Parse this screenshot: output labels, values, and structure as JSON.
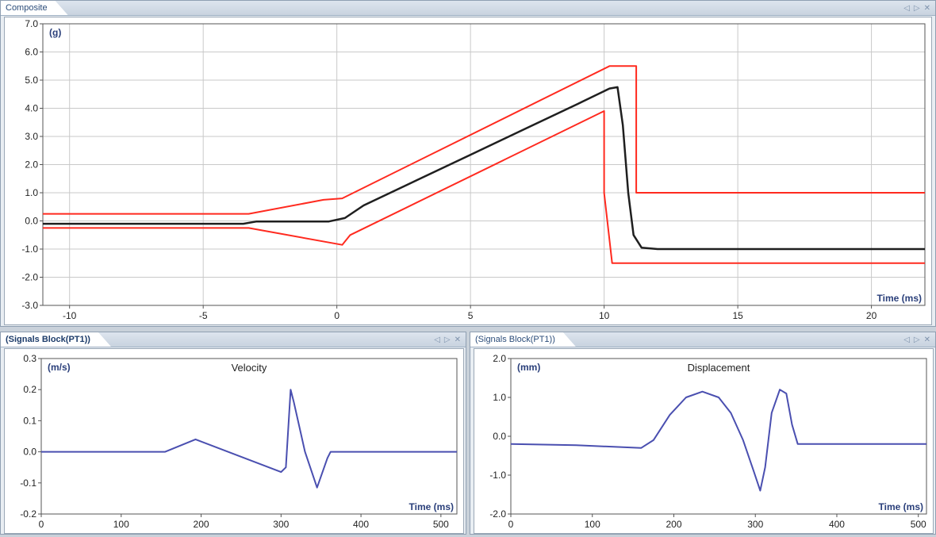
{
  "panels": {
    "composite": {
      "tab_label": "Composite"
    },
    "velocity": {
      "tab_label": "(Signals Block(PT1))"
    },
    "displacement": {
      "tab_label": "(Signals Block(PT1))"
    }
  },
  "controls": {
    "prev_icon": "◁",
    "next_icon": "▷",
    "close_icon": "✕"
  },
  "colors": {
    "envelope": "#ff2a1f",
    "signal": "#1f1f1f",
    "trace": "#4a4fb0",
    "grid": "#c9c9c9"
  },
  "chart_data": [
    {
      "id": "composite",
      "type": "line",
      "title": "",
      "xlabel": "Time (ms)",
      "ylabel": "(g)",
      "xlim": [
        -11,
        22
      ],
      "ylim": [
        -3,
        7
      ],
      "xticks": [
        -10,
        -5,
        0,
        5,
        10,
        15,
        20
      ],
      "yticks": [
        -3,
        -2,
        -1,
        0,
        1,
        2,
        3,
        4,
        5,
        6,
        7
      ],
      "xtick_labels": [
        "-10",
        "-5",
        "0",
        "5",
        "10",
        "15",
        "20"
      ],
      "ytick_labels": [
        "-3.0",
        "-2.0",
        "-1.0",
        "0.0",
        "1.0",
        "2.0",
        "3.0",
        "4.0",
        "5.0",
        "6.0",
        "7.0"
      ],
      "grid": true,
      "series": [
        {
          "color": "#ff2a1f",
          "width": 2,
          "x": [
            -11,
            -3.3,
            -0.5,
            0.2,
            10.2,
            11.2,
            11.2,
            22
          ],
          "y": [
            0.25,
            0.25,
            0.75,
            0.8,
            5.5,
            5.5,
            1.0,
            1.0
          ]
        },
        {
          "color": "#ff2a1f",
          "width": 2,
          "x": [
            -11,
            -3.3,
            0.2,
            0.5,
            10.0,
            10.0,
            10.3,
            10.3,
            22
          ],
          "y": [
            -0.25,
            -0.25,
            -0.85,
            -0.5,
            3.9,
            1.0,
            -1.5,
            -1.5,
            -1.5
          ]
        },
        {
          "color": "#1f1f1f",
          "width": 2.5,
          "x": [
            -11,
            -3.5,
            -3.0,
            -0.3,
            0.3,
            1,
            3,
            5,
            7,
            9,
            10.2,
            10.5,
            10.7,
            10.9,
            11.1,
            11.4,
            12,
            22
          ],
          "y": [
            -0.1,
            -0.1,
            -0.02,
            -0.02,
            0.1,
            0.55,
            1.45,
            2.35,
            3.25,
            4.15,
            4.7,
            4.75,
            3.4,
            1.0,
            -0.5,
            -0.95,
            -1.0,
            -1.0
          ]
        }
      ]
    },
    {
      "id": "velocity",
      "type": "line",
      "title": "Velocity",
      "xlabel": "Time (ms)",
      "ylabel": "(m/s)",
      "xlim": [
        0,
        520
      ],
      "ylim": [
        -0.2,
        0.3
      ],
      "xticks": [
        0,
        100,
        200,
        300,
        400,
        500
      ],
      "yticks": [
        -0.2,
        -0.1,
        0.0,
        0.1,
        0.2,
        0.3
      ],
      "xtick_labels": [
        "0",
        "100",
        "200",
        "300",
        "400",
        "500"
      ],
      "ytick_labels": [
        "-0.2",
        "-0.1",
        "0.0",
        "0.1",
        "0.2",
        "0.3"
      ],
      "grid": false,
      "series": [
        {
          "color": "#4a4fb0",
          "width": 2,
          "x": [
            0,
            155,
            193,
            300,
            306,
            312,
            316,
            330,
            345,
            358,
            362,
            520
          ],
          "y": [
            0.0,
            0.0,
            0.04,
            -0.065,
            -0.05,
            0.2,
            0.16,
            0.0,
            -0.115,
            -0.02,
            0.0,
            0.0
          ]
        }
      ]
    },
    {
      "id": "displacement",
      "type": "line",
      "title": "Displacement",
      "xlabel": "Time (ms)",
      "ylabel": "(mm)",
      "xlim": [
        0,
        510
      ],
      "ylim": [
        -2,
        2
      ],
      "xticks": [
        0,
        100,
        200,
        300,
        400,
        500
      ],
      "yticks": [
        -2.0,
        -1.0,
        0.0,
        1.0,
        2.0
      ],
      "xtick_labels": [
        "0",
        "100",
        "200",
        "300",
        "400",
        "500"
      ],
      "ytick_labels": [
        "-2.0",
        "-1.0",
        "0.0",
        "1.0",
        "2.0"
      ],
      "grid": false,
      "series": [
        {
          "color": "#4a4fb0",
          "width": 2,
          "x": [
            0,
            80,
            160,
            175,
            195,
            215,
            235,
            255,
            270,
            285,
            298,
            306,
            312,
            320,
            330,
            338,
            345,
            352,
            360,
            510
          ],
          "y": [
            -0.2,
            -0.23,
            -0.3,
            -0.1,
            0.55,
            1.0,
            1.15,
            1.0,
            0.6,
            -0.1,
            -0.9,
            -1.4,
            -0.8,
            0.6,
            1.2,
            1.1,
            0.3,
            -0.2,
            -0.2,
            -0.2
          ]
        }
      ]
    }
  ]
}
